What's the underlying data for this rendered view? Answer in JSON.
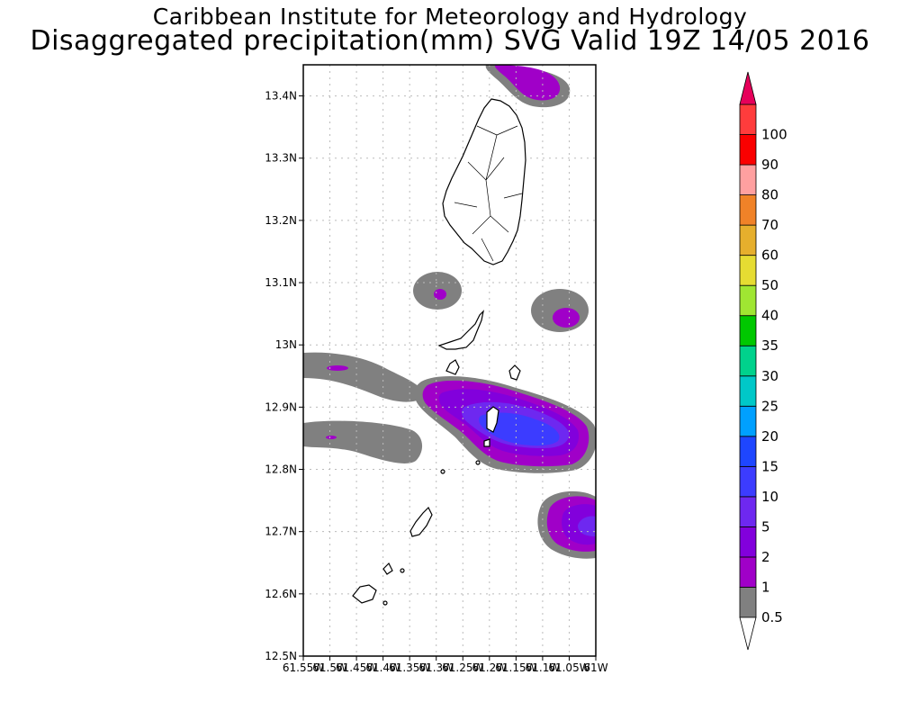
{
  "titles": {
    "line1": "Caribbean Institute for Meteorology and Hydrology",
    "line2": "Disaggregated precipitation(mm) SVG Valid 19Z 14/05 2016"
  },
  "map": {
    "lon_range": [
      -61.55,
      -61.0
    ],
    "lat_range": [
      12.5,
      13.45
    ],
    "lon_tick_labels": [
      "61.55W",
      "61.5W",
      "61.45W",
      "61.4W",
      "61.35W",
      "61.3W",
      "61.25W",
      "61.2W",
      "61.15W",
      "61.1W",
      "61.05W",
      "61W"
    ],
    "lat_tick_labels": [
      "12.5N",
      "12.6N",
      "12.7N",
      "12.8N",
      "12.9N",
      "13N",
      "13.1N",
      "13.2N",
      "13.3N",
      "13.4N"
    ],
    "grid": true
  },
  "colorbar": {
    "levels": [
      "0.5",
      "1",
      "2",
      "5",
      "10",
      "15",
      "20",
      "25",
      "30",
      "35",
      "40",
      "50",
      "60",
      "70",
      "80",
      "90",
      "100"
    ],
    "colors": [
      "#808080",
      "#a000c8",
      "#8200dc",
      "#6e28f0",
      "#3c3cff",
      "#1e46ff",
      "#00a0ff",
      "#00c8c8",
      "#00d28c",
      "#00c800",
      "#a0e632",
      "#e6dc32",
      "#e6af2d",
      "#f08228",
      "#ffa0a0",
      "#fa0000",
      "#ff3c3c"
    ],
    "top_arrow_color": "#e6005a",
    "bottom_arrow_color": "#ffffff"
  }
}
